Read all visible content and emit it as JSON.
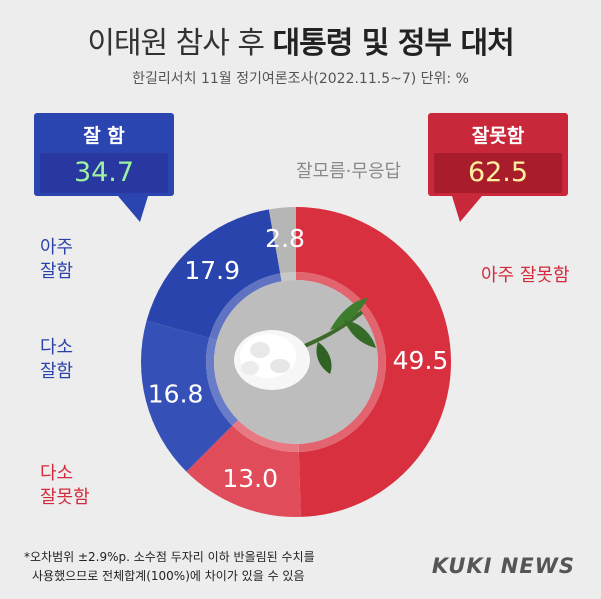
{
  "header": {
    "title_plain": "이태원 참사 후 ",
    "title_bold": "대통령 및 정부 대처",
    "subtitle": "한길리서치 11월 정기여론조사(2022.11.5~7) 단위: %"
  },
  "summary": {
    "good_label": "잘 함",
    "good_value": "34.7",
    "bad_label": "잘못함",
    "bad_value": "62.5"
  },
  "categories": {
    "very_good": [
      "아주",
      "잘함"
    ],
    "somewhat_good": [
      "다소",
      "잘함"
    ],
    "somewhat_bad": [
      "다소",
      "잘못함"
    ],
    "very_bad": "아주 잘못함",
    "dont_know": "잘모름·무응답"
  },
  "chart_data": {
    "type": "pie",
    "title": "이태원 참사 후 대통령 및 정부 대처",
    "slices": [
      {
        "name": "아주 잘못함",
        "value": 49.5,
        "color": "#d8303f"
      },
      {
        "name": "다소 잘못함",
        "value": 13.0,
        "color": "#e04c5a"
      },
      {
        "name": "다소 잘함",
        "value": 16.8,
        "color": "#3550b6"
      },
      {
        "name": "아주 잘함",
        "value": 17.9,
        "color": "#2a44ad"
      },
      {
        "name": "잘모름·무응답",
        "value": 2.8,
        "color": "#b6b6b6"
      }
    ]
  },
  "footnote": {
    "line1": "*오차범위 ±2.9%p. 소수점 두자리 이하 반올림된 수치를",
    "line2": "사용했으므로 전체합계(100%)에 차이가 있을 수 있음"
  },
  "brand": "KUKI NEWS"
}
